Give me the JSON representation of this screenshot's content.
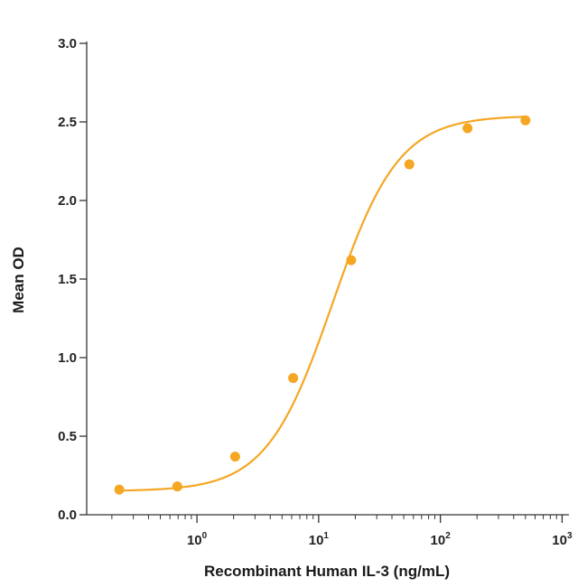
{
  "chart_data": {
    "type": "scatter",
    "title": "",
    "xlabel": "Recombinant Human IL-3 (ng/mL)",
    "ylabel": "Mean OD",
    "xscale": "log",
    "xlim": [
      0.14,
      1100
    ],
    "ylim": [
      0,
      3.0
    ],
    "yticks": [
      0.0,
      0.5,
      1.0,
      1.5,
      2.0,
      2.5,
      3.0
    ],
    "ytick_labels": [
      "0.0",
      "0.5",
      "1.0",
      "1.5",
      "2.0",
      "2.5",
      "3.0"
    ],
    "xticks": [
      1,
      10,
      100,
      1000
    ],
    "xtick_labels": [
      {
        "base": "10",
        "exp": "0"
      },
      {
        "base": "10",
        "exp": "1"
      },
      {
        "base": "10",
        "exp": "2"
      },
      {
        "base": "10",
        "exp": "3"
      }
    ],
    "grid": false,
    "legend": "none",
    "series": [
      {
        "color": "#f5a623",
        "x": [
          0.23,
          0.69,
          2.06,
          6.17,
          18.5,
          55.6,
          167,
          500
        ],
        "y": [
          0.16,
          0.18,
          0.37,
          0.87,
          1.62,
          2.23,
          2.46,
          2.51
        ]
      }
    ],
    "fit": {
      "model": "4PL",
      "bottom": 0.15,
      "top": 2.54,
      "ec50": 13.0,
      "hill": 1.6
    }
  },
  "colors": {
    "series": "#f5a623",
    "axis": "#333333"
  }
}
